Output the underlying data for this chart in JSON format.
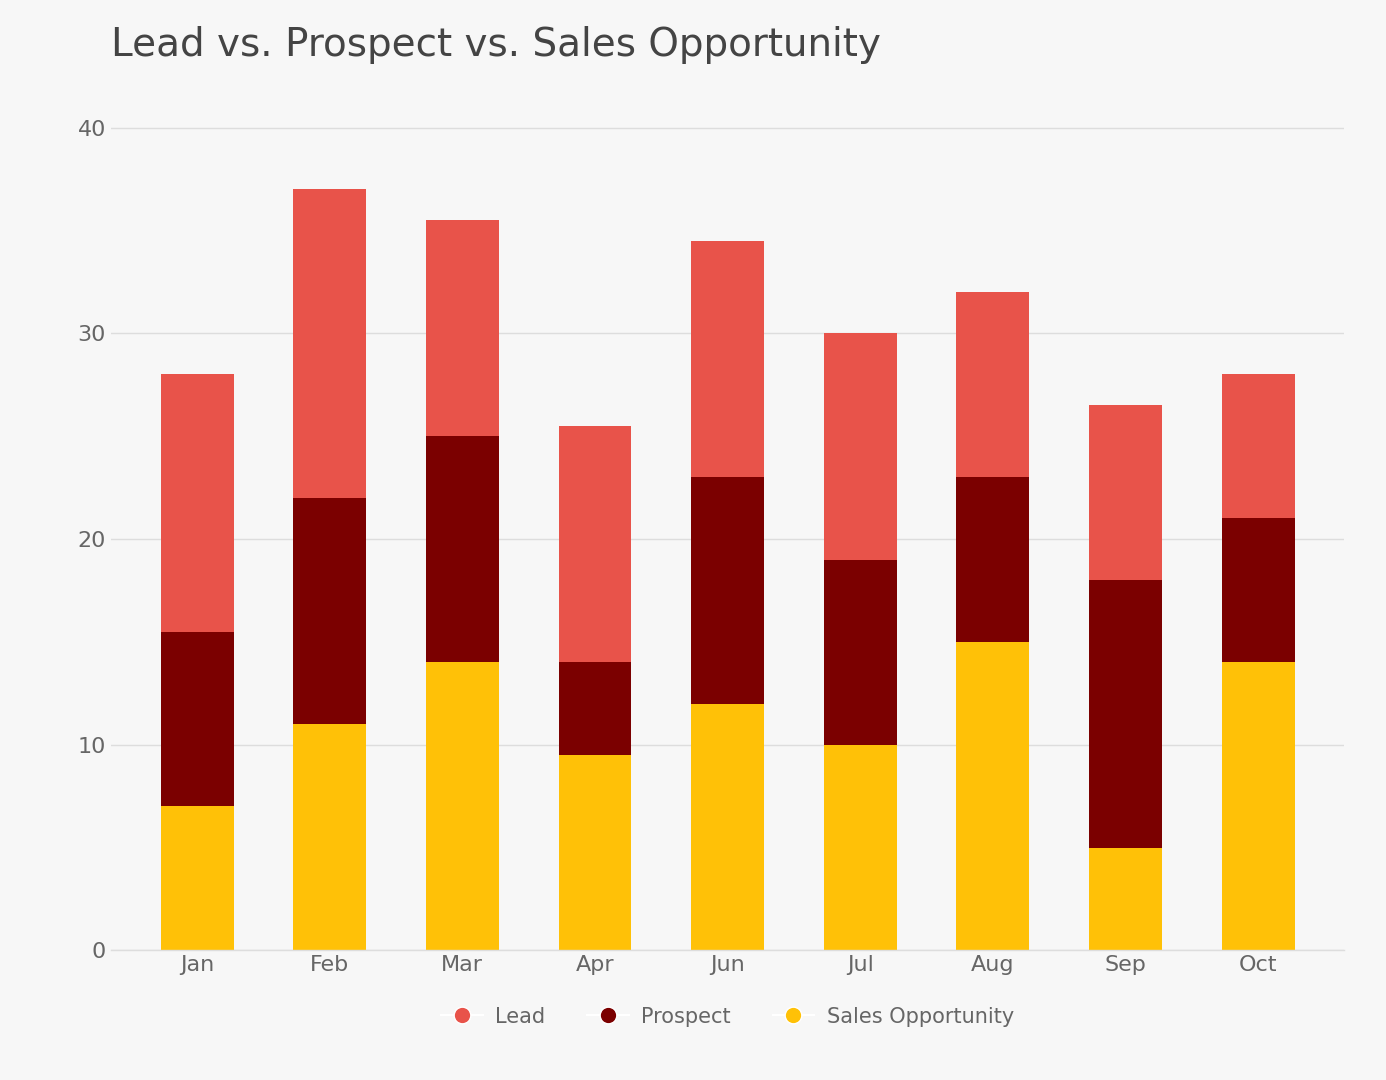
{
  "title": "Lead vs. Prospect vs. Sales Opportunity",
  "categories": [
    "Jan",
    "Feb",
    "Mar",
    "Apr",
    "Jun",
    "Jul",
    "Aug",
    "Sep",
    "Oct"
  ],
  "sales_opportunity": [
    7,
    11,
    14,
    9.5,
    12,
    10,
    15,
    5,
    14
  ],
  "prospect": [
    8.5,
    11,
    11,
    4.5,
    11,
    9,
    8,
    13,
    7
  ],
  "lead": [
    12.5,
    15,
    10.5,
    11.5,
    11.5,
    11,
    9,
    8.5,
    7
  ],
  "color_sales_opportunity": "#FFC107",
  "color_prospect": "#7B0000",
  "color_lead": "#E8534A",
  "background_color": "#F7F7F7",
  "ylim": [
    0,
    42
  ],
  "yticks": [
    0,
    10,
    20,
    30,
    40
  ],
  "title_fontsize": 28,
  "tick_fontsize": 16,
  "legend_fontsize": 15,
  "grid_color": "#DDDDDD",
  "text_color": "#666666"
}
